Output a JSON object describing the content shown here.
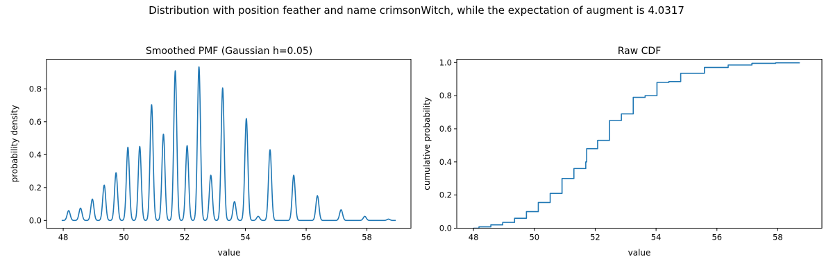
{
  "figure": {
    "title": "Distribution with position feather and name crimsonWitch, while the expectation of augment is 4.0317"
  },
  "colors": {
    "line": "#1f77b4"
  },
  "chart_data": [
    {
      "id": "pmf",
      "type": "line",
      "title": "Smoothed PMF (Gaussian h=0.05)",
      "xlabel": "value",
      "ylabel": "probability density",
      "xlim": [
        47.45,
        59.45
      ],
      "ylim": [
        -0.047,
        0.98
      ],
      "xticks": [
        48,
        50,
        52,
        54,
        56,
        58
      ],
      "yticks": [
        0.0,
        0.2,
        0.4,
        0.6,
        0.8
      ],
      "xtick_labels": [
        "48",
        "50",
        "52",
        "54",
        "56",
        "58"
      ],
      "ytick_labels": [
        "0.0",
        "0.2",
        "0.4",
        "0.6",
        "0.8"
      ],
      "x_range": [
        47.95,
        58.95
      ],
      "kernel_bandwidth": 0.05,
      "peaks": [
        {
          "x": 48.18,
          "height": 0.06
        },
        {
          "x": 48.57,
          "height": 0.075
        },
        {
          "x": 48.96,
          "height": 0.13
        },
        {
          "x": 49.35,
          "height": 0.215
        },
        {
          "x": 49.74,
          "height": 0.29
        },
        {
          "x": 50.13,
          "height": 0.445
        },
        {
          "x": 50.52,
          "height": 0.45
        },
        {
          "x": 50.91,
          "height": 0.705
        },
        {
          "x": 51.3,
          "height": 0.525
        },
        {
          "x": 51.69,
          "height": 0.91
        },
        {
          "x": 52.08,
          "height": 0.455
        },
        {
          "x": 52.47,
          "height": 0.935
        },
        {
          "x": 52.86,
          "height": 0.275
        },
        {
          "x": 53.25,
          "height": 0.805
        },
        {
          "x": 53.64,
          "height": 0.115
        },
        {
          "x": 54.03,
          "height": 0.62
        },
        {
          "x": 54.42,
          "height": 0.025
        },
        {
          "x": 54.81,
          "height": 0.43
        },
        {
          "x": 55.59,
          "height": 0.275
        },
        {
          "x": 56.37,
          "height": 0.15
        },
        {
          "x": 57.15,
          "height": 0.065
        },
        {
          "x": 57.93,
          "height": 0.025
        },
        {
          "x": 58.71,
          "height": 0.008
        }
      ]
    },
    {
      "id": "cdf",
      "type": "line",
      "drawstyle": "steps-post",
      "title": "Raw CDF",
      "xlabel": "value",
      "ylabel": "cumulative probability",
      "xlim": [
        47.45,
        59.45
      ],
      "ylim": [
        0.0,
        1.02
      ],
      "xticks": [
        48,
        50,
        52,
        54,
        56,
        58
      ],
      "yticks": [
        0.0,
        0.2,
        0.4,
        0.6,
        0.8,
        1.0
      ],
      "xtick_labels": [
        "48",
        "50",
        "52",
        "54",
        "56",
        "58"
      ],
      "ytick_labels": [
        "0.0",
        "0.2",
        "0.4",
        "0.6",
        "0.8",
        "1.0"
      ],
      "x": [
        48.0,
        48.18,
        48.57,
        48.96,
        49.35,
        49.74,
        50.13,
        50.52,
        50.91,
        51.3,
        51.69,
        51.72,
        52.08,
        52.47,
        52.86,
        53.25,
        53.64,
        54.03,
        54.42,
        54.81,
        55.59,
        56.37,
        57.15,
        57.93,
        58.71
      ],
      "y": [
        0.0,
        0.008,
        0.02,
        0.035,
        0.06,
        0.1,
        0.155,
        0.21,
        0.3,
        0.36,
        0.4,
        0.48,
        0.53,
        0.65,
        0.69,
        0.79,
        0.8,
        0.88,
        0.885,
        0.935,
        0.97,
        0.985,
        0.995,
        0.998,
        1.0
      ]
    }
  ]
}
